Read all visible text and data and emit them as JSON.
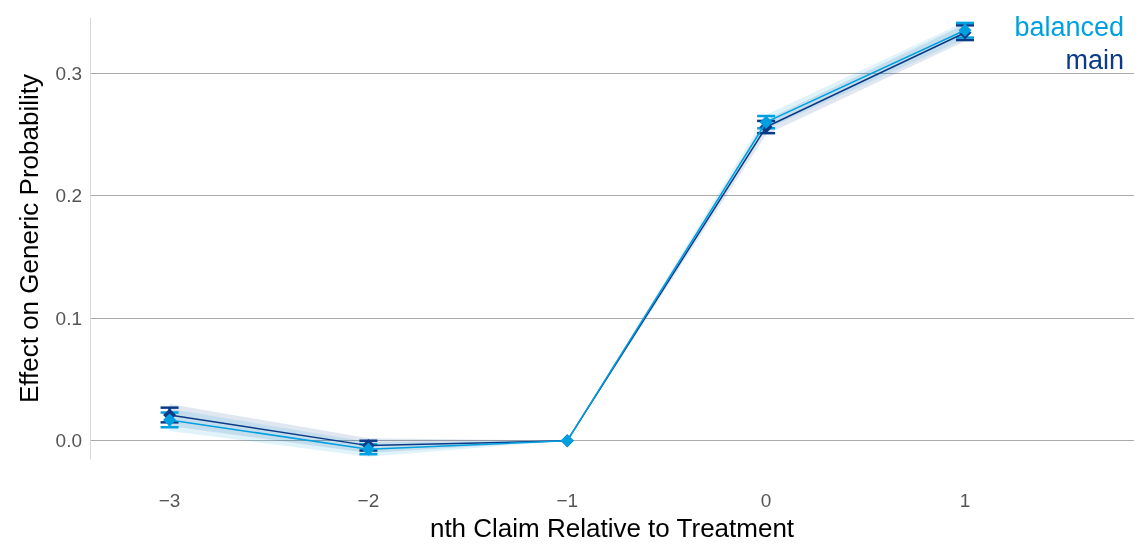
{
  "chart_data": {
    "type": "line",
    "xlabel": "nth Claim Relative to Treatment",
    "ylabel": "Effect on Generic Probability",
    "x": [
      -3,
      -2,
      -1,
      0,
      1
    ],
    "series": [
      {
        "name": "main",
        "color": "#0b3a86",
        "values": [
          0.021,
          -0.004,
          0,
          0.256,
          0.333
        ],
        "errors": [
          0.006,
          0.004,
          null,
          0.005,
          0.006
        ],
        "lower": [
          0.012,
          -0.01,
          0,
          0.25,
          0.326
        ],
        "upper": [
          0.03,
          0.002,
          0,
          0.262,
          0.34
        ]
      },
      {
        "name": "balanced",
        "color": "#00a0e0",
        "values": [
          0.017,
          -0.007,
          0,
          0.26,
          0.335
        ],
        "errors": [
          0.006,
          0.004,
          null,
          0.005,
          0.006
        ],
        "lower": [
          0.008,
          -0.013,
          0,
          0.254,
          0.328
        ],
        "upper": [
          0.026,
          -0.001,
          0,
          0.266,
          0.342
        ]
      }
    ],
    "xlim": [
      -3.4,
      1.85
    ],
    "xticks": [
      {
        "value": -3,
        "label": "−3"
      },
      {
        "value": -2,
        "label": "−2"
      },
      {
        "value": -1,
        "label": "−1"
      },
      0,
      1
    ],
    "ylim": [
      -0.015,
      0.345
    ],
    "yticks": [
      {
        "value": 0,
        "label": "0.0"
      },
      0.1,
      0.2,
      0.3
    ],
    "grid": "y",
    "legend": "top right",
    "marker": "diamond",
    "line_style": "solid"
  }
}
